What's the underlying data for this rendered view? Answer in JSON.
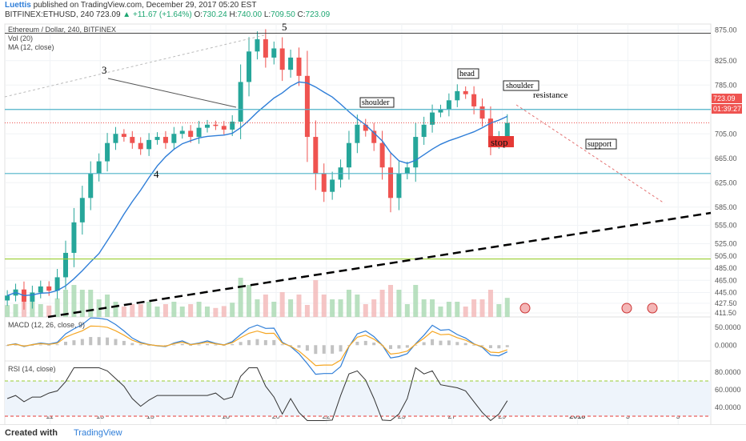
{
  "header": {
    "author": "Luettis",
    "published": "published on TradingView.com, December 29, 2017 05:20 EST",
    "symbol": "BITFINEX:ETHUSD, 240",
    "last": "723.09",
    "change": "▲ +11.67 (+1.64%)",
    "o_label": "O:",
    "o": "730.24",
    "h_label": "H:",
    "h": "740.00",
    "l_label": "L:",
    "l": "709.50",
    "c_label": "C:",
    "c": "723.09"
  },
  "panes": {
    "main_title": "Ethereum / Dollar, 240, BITFINEX",
    "vol_label": "Vol (20)",
    "ma_label": "MA (12, close)",
    "macd_label": "MACD (12, 26, close, 9)",
    "rsi_label": "RSI (14, close)"
  },
  "price_badge": "723.09",
  "time_badge": "01:39:27",
  "footer": {
    "created_with": "Created with",
    "brand": "TradingView"
  },
  "colors": {
    "up": "#26a69a",
    "down": "#ef5350",
    "ma": "#2f7ed8",
    "accent": "#2f7ed8",
    "resistance": "#4fb3c9",
    "support": "#4fb3c9",
    "support2": "#9acd32",
    "stop": "#e53935"
  },
  "chart_data": [
    {
      "type": "candlestick",
      "title": "Ethereum / Dollar, 240, BITFINEX",
      "y_ticks": [
        875.0,
        825.0,
        785.0,
        745.0,
        705.0,
        665.0,
        625.0,
        585.0,
        555.0,
        525.0,
        505.0,
        485.0,
        465.0,
        445.0,
        427.5,
        411.5
      ],
      "x_ticks": [
        "11",
        "13",
        "15",
        "18",
        "20",
        "22",
        "25",
        "27",
        "29",
        "2018",
        "3",
        "5"
      ],
      "x_tick_days": [
        11,
        13,
        15,
        18,
        20,
        22,
        25,
        27,
        29,
        32,
        34,
        36
      ],
      "closes": [
        440,
        450,
        430,
        445,
        455,
        448,
        470,
        510,
        560,
        600,
        640,
        660,
        690,
        705,
        700,
        690,
        680,
        695,
        700,
        690,
        705,
        710,
        700,
        715,
        720,
        718,
        712,
        725,
        790,
        840,
        860,
        830,
        845,
        810,
        830,
        800,
        700,
        640,
        610,
        630,
        650,
        690,
        720,
        710,
        690,
        650,
        600,
        640,
        650,
        700,
        720,
        740,
        745,
        760,
        775,
        770,
        750,
        730,
        690,
        700,
        723.09
      ],
      "ma_period": 12,
      "horizontal_lines": {
        "resistance": 745,
        "support": 640,
        "lower": 500,
        "top": 870
      },
      "annotations": [
        "3",
        "4",
        "5",
        "head",
        "shoulder",
        "shoulder",
        "resistance",
        "support",
        "stop"
      ],
      "ylim": [
        405,
        885
      ]
    },
    {
      "type": "line",
      "title": "MACD (12, 26, close, 9)",
      "y_ticks": [
        50.0,
        0.0
      ],
      "y_tick_labels": [
        "50.0000",
        "0.0000"
      ],
      "ylim": [
        -40,
        75
      ]
    },
    {
      "type": "line",
      "title": "RSI (14, close)",
      "y_ticks": [
        80.0,
        60.0,
        40.0
      ],
      "y_tick_labels": [
        "80.0000",
        "60.0000",
        "40.0000"
      ],
      "levels": [
        70,
        30
      ],
      "ylim": [
        20,
        90
      ]
    }
  ]
}
